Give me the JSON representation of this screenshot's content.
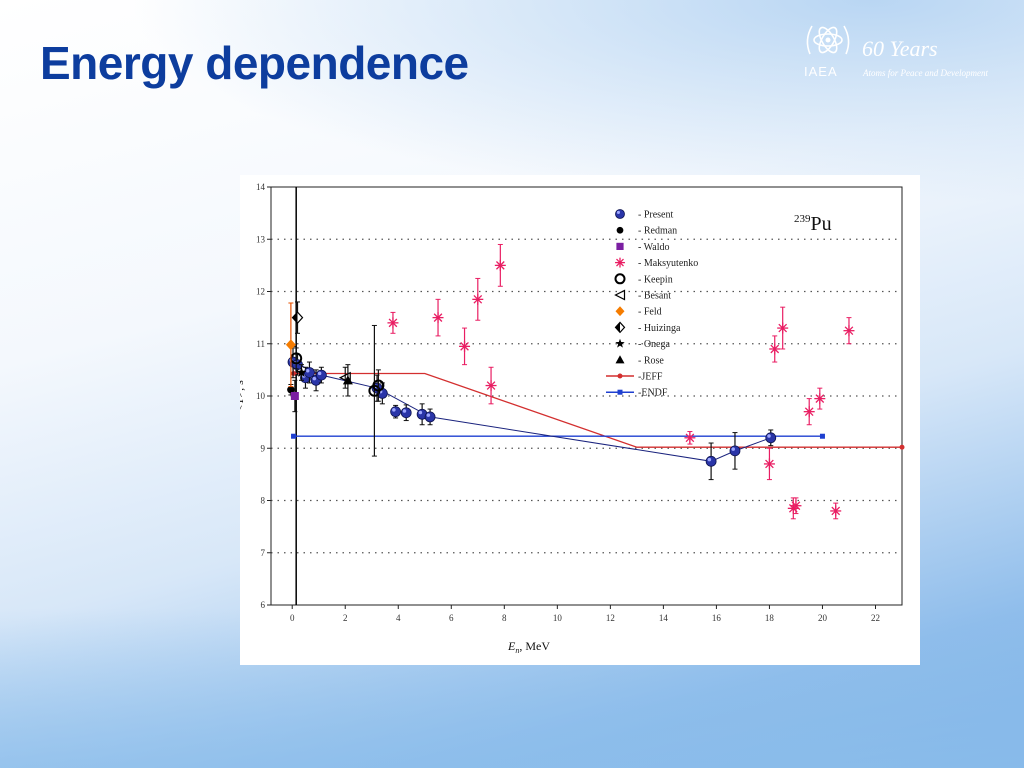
{
  "slide": {
    "title": "Energy dependence"
  },
  "logo": {
    "org": "IAEA",
    "years": "60 Years",
    "tagline": "Atoms for Peace and Development",
    "icon": "iaea-atom-emblem-icon"
  },
  "chart_data": {
    "type": "scatter",
    "title": "",
    "annotation": {
      "mass": "239",
      "element": "Pu"
    },
    "xlabel": "E",
    "xlabel_sub": "n",
    "xlabel_unit": ", MeV",
    "ylabel": "<T>, s",
    "xlim": [
      -0.8,
      23
    ],
    "ylim": [
      6,
      14
    ],
    "xticks": [
      0,
      2,
      4,
      6,
      8,
      10,
      12,
      14,
      16,
      18,
      20,
      22
    ],
    "yticks": [
      6,
      7,
      8,
      9,
      10,
      11,
      12,
      13,
      14
    ],
    "grid": "dotted-horizontal",
    "legend_position": "top-right",
    "series": [
      {
        "name": "- Present",
        "marker": "blue-sphere",
        "color": "#1a237e",
        "points": [
          [
            0.03,
            10.65,
            0.3
          ],
          [
            0.2,
            10.6,
            0.2
          ],
          [
            0.5,
            10.35,
            0.2
          ],
          [
            0.65,
            10.45,
            0.2
          ],
          [
            0.9,
            10.3,
            0.2
          ],
          [
            1.1,
            10.4,
            0.15
          ],
          [
            3.2,
            10.15,
            0.25
          ],
          [
            3.4,
            10.05,
            0.2
          ],
          [
            3.9,
            9.7,
            0.12
          ],
          [
            4.3,
            9.68,
            0.15
          ],
          [
            4.9,
            9.65,
            0.2
          ],
          [
            5.2,
            9.6,
            0.15
          ],
          [
            15.8,
            8.75,
            0.35
          ],
          [
            16.7,
            8.95,
            0.35
          ],
          [
            18.05,
            9.2,
            0.15
          ]
        ]
      },
      {
        "name": "- Redman",
        "marker": "black-dot",
        "color": "#000000",
        "points": [
          [
            -0.05,
            10.12,
            0.1
          ]
        ]
      },
      {
        "name": "- Waldo",
        "marker": "purple-square",
        "color": "#7b1fa2",
        "points": [
          [
            0.1,
            10.0,
            0.3
          ]
        ]
      },
      {
        "name": "- Maksyutenko",
        "marker": "magenta-asterisk",
        "color": "#e91e63",
        "points": [
          [
            3.8,
            11.4,
            0.2
          ],
          [
            5.5,
            11.5,
            0.35
          ],
          [
            6.5,
            10.95,
            0.35
          ],
          [
            7.0,
            11.85,
            0.4
          ],
          [
            7.5,
            10.2,
            0.35
          ],
          [
            7.85,
            12.5,
            0.4
          ],
          [
            15.0,
            9.2,
            0.12
          ],
          [
            18.0,
            8.7,
            0.3
          ],
          [
            18.2,
            10.9,
            0.25
          ],
          [
            18.5,
            11.3,
            0.4
          ],
          [
            19.5,
            9.7,
            0.25
          ],
          [
            19.9,
            9.95,
            0.2
          ],
          [
            18.9,
            7.85,
            0.2
          ],
          [
            19.0,
            7.9,
            0.15
          ],
          [
            20.5,
            7.8,
            0.15
          ],
          [
            21.0,
            11.25,
            0.25
          ]
        ]
      },
      {
        "name": "- Keepin",
        "marker": "open-circle",
        "color": "#000000",
        "points": [
          [
            0.15,
            10.72,
            0.2
          ],
          [
            3.1,
            10.1,
            1.25
          ],
          [
            3.25,
            10.2,
            0.3
          ]
        ]
      },
      {
        "name": "- Besant",
        "marker": "open-triangle-left",
        "color": "#000000",
        "points": [
          [
            2.0,
            10.35,
            0.2
          ]
        ]
      },
      {
        "name": "- Feld",
        "marker": "orange-diamond",
        "color": "#f57c00",
        "points": [
          [
            -0.05,
            10.98,
            0.8
          ]
        ]
      },
      {
        "name": "- Huizinga",
        "marker": "half-filled-diamond",
        "color": "#000000",
        "points": [
          [
            0.2,
            11.5,
            0.3
          ]
        ]
      },
      {
        "name": "- Onega",
        "marker": "star",
        "color": "#000000",
        "points": [
          [
            0.35,
            10.45,
            0.15
          ]
        ]
      },
      {
        "name": "- Rose",
        "marker": "filled-triangle",
        "color": "#000000",
        "points": [
          [
            2.1,
            10.3,
            0.3
          ]
        ]
      }
    ],
    "lines": [
      {
        "name": "-JEFF",
        "color": "#d32f2f",
        "points": [
          [
            0,
            10.7
          ],
          [
            0.05,
            10.43
          ],
          [
            5,
            10.43
          ],
          [
            13,
            9.02
          ],
          [
            23,
            9.02
          ]
        ]
      },
      {
        "name": "-ENDF",
        "color": "#1e3fd0",
        "points": [
          [
            0.05,
            9.23
          ],
          [
            20,
            9.23
          ]
        ]
      },
      {
        "name": "Present-trend",
        "color": "#1a237e",
        "legend": false,
        "points": [
          [
            0.03,
            10.65
          ],
          [
            1.1,
            10.4
          ],
          [
            3.2,
            10.15
          ],
          [
            5.2,
            9.6
          ],
          [
            15.8,
            8.75
          ],
          [
            16.7,
            8.95
          ],
          [
            18.05,
            9.2
          ]
        ]
      }
    ],
    "vertical_marker": {
      "x": 0.15,
      "y_from": 6,
      "y_to": 14
    }
  }
}
